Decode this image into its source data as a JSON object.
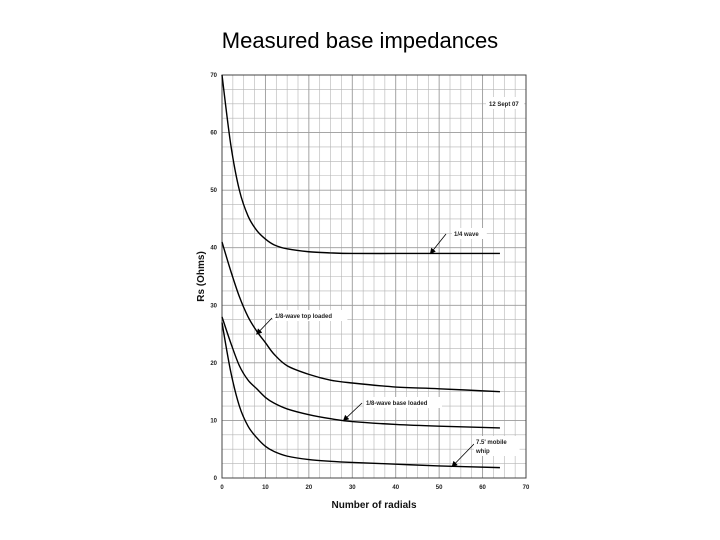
{
  "slide": {
    "title": "Measured base impedances"
  },
  "chart_data": {
    "type": "line",
    "xlabel": "Number of radials",
    "ylabel": "Rs (Ohms)",
    "xlim": [
      0,
      70
    ],
    "ylim": [
      0,
      70
    ],
    "xticks": [
      0,
      10,
      20,
      30,
      40,
      50,
      60,
      70
    ],
    "yticks": [
      0,
      10,
      20,
      30,
      40,
      50,
      60,
      70
    ],
    "grid": true,
    "date_label": "12 Sept 07",
    "line_color": "#000000",
    "grid_color": "#b4b4b4",
    "series": [
      {
        "name": "1/4 wave",
        "x": [
          0,
          2,
          4,
          6,
          8,
          10,
          12,
          15,
          20,
          25,
          30,
          40,
          50,
          64
        ],
        "y": [
          70,
          58,
          50,
          45.5,
          43,
          41.5,
          40.5,
          39.8,
          39.3,
          39.1,
          39,
          39,
          39,
          39
        ]
      },
      {
        "name": "1/8-wave top loaded",
        "x": [
          0,
          2,
          4,
          6,
          8,
          10,
          12,
          15,
          20,
          25,
          30,
          40,
          50,
          64
        ],
        "y": [
          41,
          36,
          31.5,
          28,
          25.5,
          23.5,
          21.5,
          19.5,
          18,
          17,
          16.5,
          15.8,
          15.5,
          15
        ]
      },
      {
        "name": "1/8-wave base loaded",
        "x": [
          0,
          2,
          4,
          6,
          8,
          10,
          12,
          15,
          20,
          25,
          30,
          40,
          50,
          64
        ],
        "y": [
          28,
          23.5,
          19.5,
          17,
          15.5,
          14,
          13,
          12,
          11,
          10.3,
          9.8,
          9.3,
          9,
          8.7
        ]
      },
      {
        "name": "7.5' mobile whip",
        "x": [
          0,
          2,
          4,
          6,
          8,
          10,
          12,
          15,
          20,
          25,
          30,
          40,
          50,
          64
        ],
        "y": [
          27,
          18.5,
          12.5,
          9,
          7,
          5.5,
          4.6,
          3.8,
          3.2,
          2.9,
          2.7,
          2.4,
          2.1,
          1.8
        ]
      }
    ],
    "annotations": [
      {
        "text": "1/4 wave",
        "arrow_to": [
          48,
          39
        ]
      },
      {
        "text": "1/8-wave top loaded",
        "arrow_to": [
          8,
          25
        ]
      },
      {
        "text": "1/8-wave base loaded",
        "arrow_to": [
          28,
          10
        ]
      },
      {
        "text": "7.5' mobile",
        "text2": "whip",
        "arrow_to": [
          53,
          2
        ]
      }
    ]
  }
}
